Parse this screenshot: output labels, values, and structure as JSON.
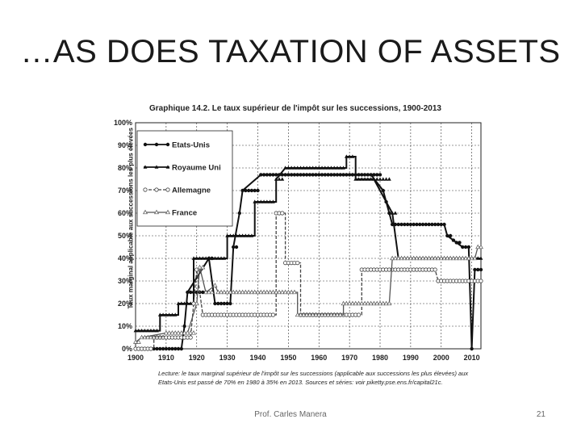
{
  "slide": {
    "title": "…AS DOES TAXATION OF ASSETS",
    "footer": "Prof. Carles Manera",
    "page": "21"
  },
  "figure": {
    "title": "Graphique 14.2. Le taux supérieur de l'impôt sur les successions, 1900-2013",
    "caption_line1": "Lecture: le taux marginal supérieur de l'impôt sur les successions (applicable aux successions les plus élevées) aux",
    "caption_line2": "Etats-Unis est passé de 70% en 1980 à 35% en 2013. Sources et séries: voir piketty.pse.ens.fr/capital21c."
  },
  "chart_data": {
    "type": "line",
    "title": "Graphique 14.2. Le taux supérieur de l'impôt sur les successions, 1900-2013",
    "ylabel": "Taux marginal applicable aux successions les plus élevées",
    "xlabel": "",
    "xlim": [
      1900,
      2013
    ],
    "ylim": [
      0,
      100
    ],
    "x_ticks": [
      "1900",
      "1910",
      "1920",
      "1930",
      "1940",
      "1950",
      "1960",
      "1970",
      "1980",
      "1990",
      "2000",
      "2010"
    ],
    "y_ticks": [
      "0%",
      "10%",
      "20%",
      "30%",
      "40%",
      "50%",
      "60%",
      "70%",
      "80%",
      "90%",
      "100%"
    ],
    "grid": true,
    "legend_position": "top-left",
    "series": [
      {
        "name": "Etats-Unis",
        "color": "#111111",
        "marker": "filled-circle",
        "dash": "solid",
        "points": [
          [
            1900,
            0
          ],
          [
            1915,
            0
          ],
          [
            1916,
            10
          ],
          [
            1917,
            25
          ],
          [
            1924,
            40
          ],
          [
            1926,
            20
          ],
          [
            1931,
            20
          ],
          [
            1932,
            45
          ],
          [
            1934,
            60
          ],
          [
            1935,
            70
          ],
          [
            1941,
            77
          ],
          [
            1977,
            77
          ],
          [
            1981,
            70
          ],
          [
            1982,
            65
          ],
          [
            1983,
            60
          ],
          [
            1984,
            55
          ],
          [
            2001,
            55
          ],
          [
            2002,
            50
          ],
          [
            2004,
            48
          ],
          [
            2005,
            47
          ],
          [
            2007,
            45
          ],
          [
            2009,
            45
          ],
          [
            2010,
            0
          ],
          [
            2011,
            35
          ],
          [
            2013,
            35
          ]
        ]
      },
      {
        "name": "Royaume Uni",
        "color": "#111111",
        "marker": "filled-triangle",
        "dash": "solid",
        "points": [
          [
            1900,
            8
          ],
          [
            1908,
            8
          ],
          [
            1908,
            15
          ],
          [
            1914,
            15
          ],
          [
            1914,
            20
          ],
          [
            1919,
            20
          ],
          [
            1919,
            40
          ],
          [
            1930,
            40
          ],
          [
            1930,
            50
          ],
          [
            1939,
            50
          ],
          [
            1939,
            65
          ],
          [
            1946,
            65
          ],
          [
            1946,
            75
          ],
          [
            1949,
            80
          ],
          [
            1969,
            80
          ],
          [
            1969,
            85
          ],
          [
            1972,
            85
          ],
          [
            1972,
            75
          ],
          [
            1975,
            75
          ],
          [
            1978,
            75
          ],
          [
            1984,
            60
          ],
          [
            1986,
            40
          ],
          [
            2013,
            40
          ]
        ]
      },
      {
        "name": "Allemagne",
        "color": "#444444",
        "marker": "open-circle",
        "dash": "dashed",
        "points": [
          [
            1900,
            0
          ],
          [
            1906,
            0
          ],
          [
            1906,
            5
          ],
          [
            1918,
            5
          ],
          [
            1919,
            20
          ],
          [
            1920,
            35
          ],
          [
            1922,
            15
          ],
          [
            1946,
            15
          ],
          [
            1946,
            60
          ],
          [
            1949,
            60
          ],
          [
            1949,
            38
          ],
          [
            1954,
            38
          ],
          [
            1954,
            15
          ],
          [
            1974,
            15
          ],
          [
            1974,
            35
          ],
          [
            1998,
            35
          ],
          [
            1999,
            30
          ],
          [
            2013,
            30
          ]
        ]
      },
      {
        "name": "France",
        "color": "#555555",
        "marker": "open-triangle",
        "dash": "solid",
        "points": [
          [
            1900,
            3
          ],
          [
            1902,
            5
          ],
          [
            1910,
            7
          ],
          [
            1917,
            7
          ],
          [
            1920,
            20
          ],
          [
            1921,
            36
          ],
          [
            1923,
            25
          ],
          [
            1926,
            28
          ],
          [
            1927,
            25
          ],
          [
            1953,
            25
          ],
          [
            1953,
            15
          ],
          [
            1968,
            15
          ],
          [
            1968,
            20
          ],
          [
            1983,
            20
          ],
          [
            1984,
            40
          ],
          [
            2011,
            40
          ],
          [
            2012,
            45
          ],
          [
            2013,
            45
          ]
        ]
      }
    ]
  }
}
